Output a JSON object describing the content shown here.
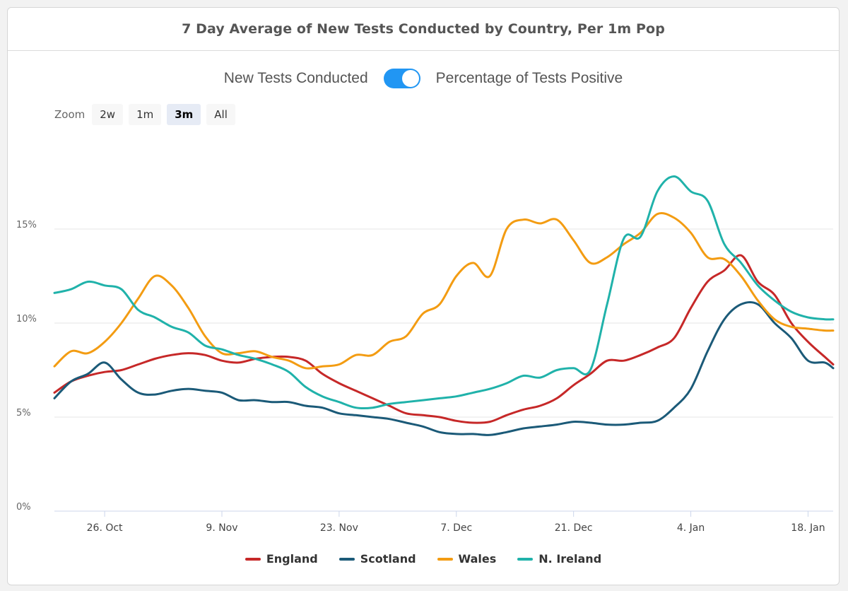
{
  "title": "7 Day Average of New Tests Conducted by Country, Per 1m Pop",
  "toggle": {
    "left_label": "New Tests Conducted",
    "right_label": "Percentage of Tests Positive",
    "state": "on"
  },
  "zoom": {
    "label": "Zoom",
    "options": [
      "2w",
      "1m",
      "3m",
      "All"
    ],
    "selected": "3m"
  },
  "chart_data": {
    "type": "line",
    "title": "7 Day Average of New Tests Conducted by Country, Per 1m Pop",
    "xlabel": "",
    "ylabel": "",
    "ylim": [
      0,
      20
    ],
    "y_ticks": [
      "0%",
      "5%",
      "10%",
      "15%"
    ],
    "x_ticks": [
      "26. Oct",
      "9. Nov",
      "23. Nov",
      "7. Dec",
      "21. Dec",
      "4. Jan",
      "18. Jan"
    ],
    "x_range_days": [
      -6,
      87
    ],
    "legend_position": "bottom",
    "series": [
      {
        "name": "England",
        "color": "#c62828",
        "x": [
          -6,
          -4,
          -2,
          0,
          2,
          4,
          6,
          8,
          10,
          12,
          14,
          16,
          18,
          20,
          22,
          24,
          26,
          28,
          30,
          32,
          34,
          36,
          38,
          40,
          42,
          44,
          46,
          48,
          50,
          52,
          54,
          56,
          58,
          60,
          62,
          64,
          66,
          68,
          70,
          72,
          74,
          76,
          78,
          80,
          82,
          84,
          86,
          87
        ],
        "y": [
          6.3,
          6.9,
          7.2,
          7.4,
          7.5,
          7.8,
          8.1,
          8.3,
          8.4,
          8.3,
          8.0,
          7.9,
          8.1,
          8.2,
          8.2,
          8.0,
          7.3,
          6.8,
          6.4,
          6.0,
          5.6,
          5.2,
          5.1,
          5.0,
          4.8,
          4.7,
          4.75,
          5.1,
          5.4,
          5.6,
          6.0,
          6.7,
          7.3,
          8.0,
          8.0,
          8.3,
          8.7,
          9.2,
          10.8,
          12.2,
          12.8,
          13.6,
          12.2,
          11.5,
          10.0,
          9.0,
          8.2,
          7.8
        ]
      },
      {
        "name": "Scotland",
        "color": "#1b5a78",
        "x": [
          -6,
          -4,
          -2,
          0,
          2,
          4,
          6,
          8,
          10,
          12,
          14,
          16,
          18,
          20,
          22,
          24,
          26,
          28,
          30,
          32,
          34,
          36,
          38,
          40,
          42,
          44,
          46,
          48,
          50,
          52,
          54,
          56,
          58,
          60,
          62,
          64,
          66,
          68,
          70,
          72,
          74,
          76,
          78,
          80,
          82,
          84,
          86,
          87
        ],
        "y": [
          6.0,
          6.9,
          7.3,
          7.9,
          7.0,
          6.3,
          6.2,
          6.4,
          6.5,
          6.4,
          6.3,
          5.9,
          5.9,
          5.8,
          5.8,
          5.6,
          5.5,
          5.2,
          5.1,
          5.0,
          4.9,
          4.7,
          4.5,
          4.2,
          4.1,
          4.1,
          4.05,
          4.2,
          4.4,
          4.5,
          4.6,
          4.75,
          4.7,
          4.6,
          4.6,
          4.7,
          4.8,
          5.5,
          6.5,
          8.5,
          10.2,
          11.0,
          11.0,
          10.0,
          9.2,
          8.0,
          7.9,
          7.6
        ]
      },
      {
        "name": "Wales",
        "color": "#f39c12",
        "x": [
          -6,
          -4,
          -2,
          0,
          2,
          4,
          6,
          8,
          10,
          12,
          14,
          16,
          18,
          20,
          22,
          24,
          26,
          28,
          30,
          32,
          34,
          36,
          38,
          40,
          42,
          44,
          46,
          48,
          50,
          52,
          54,
          56,
          58,
          60,
          62,
          64,
          66,
          68,
          70,
          72,
          74,
          76,
          78,
          80,
          82,
          84,
          86,
          87
        ],
        "y": [
          7.7,
          8.5,
          8.4,
          9.0,
          10.0,
          11.3,
          12.5,
          12.0,
          10.8,
          9.3,
          8.4,
          8.4,
          8.5,
          8.2,
          8.0,
          7.6,
          7.7,
          7.8,
          8.3,
          8.3,
          9.0,
          9.3,
          10.5,
          11.0,
          12.5,
          13.2,
          12.5,
          15.0,
          15.5,
          15.3,
          15.5,
          14.4,
          13.2,
          13.5,
          14.2,
          14.8,
          15.8,
          15.6,
          14.8,
          13.5,
          13.4,
          12.5,
          11.2,
          10.2,
          9.8,
          9.7,
          9.6,
          9.6
        ]
      },
      {
        "name": "N. Ireland",
        "color": "#20b2aa",
        "x": [
          -6,
          -4,
          -2,
          0,
          2,
          4,
          6,
          8,
          10,
          12,
          14,
          16,
          18,
          20,
          22,
          24,
          26,
          28,
          30,
          32,
          34,
          36,
          38,
          40,
          42,
          44,
          46,
          48,
          50,
          52,
          54,
          56,
          58,
          60,
          62,
          64,
          66,
          68,
          70,
          72,
          74,
          76,
          78,
          80,
          82,
          84,
          86,
          87
        ],
        "y": [
          11.6,
          11.8,
          12.2,
          12.0,
          11.8,
          10.7,
          10.3,
          9.8,
          9.5,
          8.8,
          8.6,
          8.3,
          8.1,
          7.8,
          7.4,
          6.6,
          6.1,
          5.8,
          5.5,
          5.5,
          5.7,
          5.8,
          5.9,
          6.0,
          6.1,
          6.3,
          6.5,
          6.8,
          7.2,
          7.1,
          7.5,
          7.6,
          7.5,
          11.0,
          14.5,
          14.6,
          17.0,
          17.8,
          17.0,
          16.5,
          14.2,
          13.2,
          12.0,
          11.2,
          10.6,
          10.3,
          10.2,
          10.2
        ]
      }
    ]
  }
}
